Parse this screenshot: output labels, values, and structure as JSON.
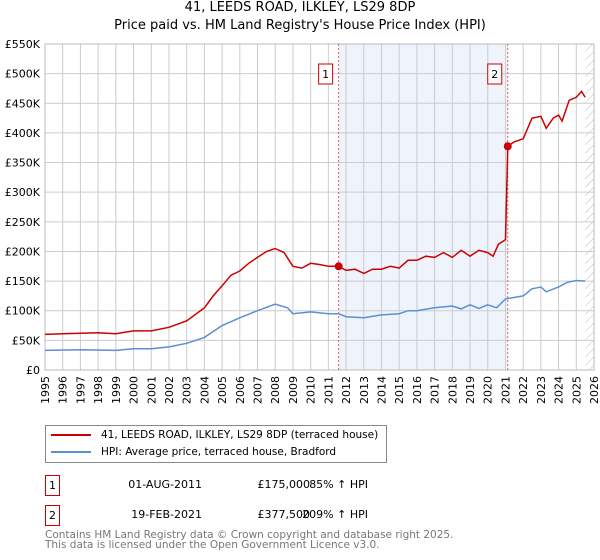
{
  "chart_data": {
    "type": "line",
    "title": "41, LEEDS ROAD, ILKLEY, LS29 8DP",
    "subtitle": "Price paid vs. HM Land Registry's House Price Index (HPI)",
    "xlim": [
      1995,
      2026
    ],
    "ylim": [
      0,
      550000
    ],
    "x_ticks": [
      "1995",
      "1996",
      "1997",
      "1998",
      "1999",
      "2000",
      "2001",
      "2002",
      "2003",
      "2004",
      "2005",
      "2006",
      "2007",
      "2008",
      "2009",
      "2010",
      "2011",
      "2012",
      "2013",
      "2014",
      "2015",
      "2016",
      "2017",
      "2018",
      "2019",
      "2020",
      "2021",
      "2022",
      "2023",
      "2024",
      "2025",
      "2026"
    ],
    "y_ticks": [
      "£0",
      "£50K",
      "£100K",
      "£150K",
      "£200K",
      "£250K",
      "£300K",
      "£350K",
      "£400K",
      "£450K",
      "£500K",
      "£550K"
    ],
    "grid": true,
    "series": [
      {
        "name": "41, LEEDS ROAD, ILKLEY, LS29 8DP (terraced house)",
        "color": "#cc0000",
        "points": [
          [
            1995,
            60
          ],
          [
            1996,
            61
          ],
          [
            1997,
            62
          ],
          [
            1998,
            63
          ],
          [
            1999,
            61
          ],
          [
            2000,
            66
          ],
          [
            2001,
            66
          ],
          [
            2002,
            72
          ],
          [
            2003,
            83
          ],
          [
            2004,
            105
          ],
          [
            2004.5,
            125
          ],
          [
            2005,
            142
          ],
          [
            2005.5,
            160
          ],
          [
            2006,
            167
          ],
          [
            2006.5,
            180
          ],
          [
            2007,
            190
          ],
          [
            2007.5,
            200
          ],
          [
            2008,
            205
          ],
          [
            2008.5,
            198
          ],
          [
            2009,
            175
          ],
          [
            2009.5,
            172
          ],
          [
            2010,
            180
          ],
          [
            2010.5,
            178
          ],
          [
            2011,
            175
          ],
          [
            2011.58,
            175
          ],
          [
            2012,
            168
          ],
          [
            2012.5,
            170
          ],
          [
            2013,
            163
          ],
          [
            2013.5,
            170
          ],
          [
            2014,
            170
          ],
          [
            2014.5,
            175
          ],
          [
            2015,
            172
          ],
          [
            2015.5,
            185
          ],
          [
            2016,
            185
          ],
          [
            2016.5,
            192
          ],
          [
            2017,
            190
          ],
          [
            2017.5,
            198
          ],
          [
            2018,
            190
          ],
          [
            2018.5,
            202
          ],
          [
            2019,
            192
          ],
          [
            2019.5,
            202
          ],
          [
            2020,
            198
          ],
          [
            2020.3,
            192
          ],
          [
            2020.6,
            212
          ],
          [
            2021.0,
            220
          ],
          [
            2021.13,
            377.5
          ],
          [
            2021.5,
            385
          ],
          [
            2022,
            390
          ],
          [
            2022.5,
            425
          ],
          [
            2023,
            428
          ],
          [
            2023.3,
            408
          ],
          [
            2023.7,
            425
          ],
          [
            2024,
            430
          ],
          [
            2024.2,
            420
          ],
          [
            2024.6,
            455
          ],
          [
            2025,
            460
          ],
          [
            2025.3,
            470
          ],
          [
            2025.5,
            460
          ]
        ]
      },
      {
        "name": "HPI: Average price, terraced house, Bradford",
        "color": "#5b8fd4",
        "points": [
          [
            1995,
            33
          ],
          [
            1997,
            34
          ],
          [
            1999,
            33
          ],
          [
            2000,
            36
          ],
          [
            2001,
            36
          ],
          [
            2002,
            39
          ],
          [
            2003,
            45
          ],
          [
            2004,
            55
          ],
          [
            2005,
            75
          ],
          [
            2006,
            88
          ],
          [
            2007,
            100
          ],
          [
            2008,
            111
          ],
          [
            2008.7,
            105
          ],
          [
            2009,
            95
          ],
          [
            2010,
            98
          ],
          [
            2011,
            95
          ],
          [
            2011.58,
            95
          ],
          [
            2012,
            90
          ],
          [
            2013,
            88
          ],
          [
            2014,
            93
          ],
          [
            2015,
            95
          ],
          [
            2015.5,
            100
          ],
          [
            2016,
            100
          ],
          [
            2017,
            105
          ],
          [
            2018,
            108
          ],
          [
            2018.5,
            103
          ],
          [
            2019,
            110
          ],
          [
            2019.5,
            104
          ],
          [
            2020,
            110
          ],
          [
            2020.5,
            105
          ],
          [
            2021,
            120
          ],
          [
            2022,
            125
          ],
          [
            2022.5,
            137
          ],
          [
            2023,
            140
          ],
          [
            2023.3,
            132
          ],
          [
            2024,
            140
          ],
          [
            2024.5,
            148
          ],
          [
            2025,
            151
          ],
          [
            2025.5,
            150
          ]
        ]
      }
    ],
    "value_units": "£ thousands",
    "annotations": [
      {
        "label": "1",
        "x": 2011.58,
        "y": 175
      },
      {
        "label": "2",
        "x": 2021.13,
        "y": 377.5
      }
    ],
    "shaded_range": [
      2011.58,
      2021.13
    ],
    "forecast_hatch_from": 2025.5,
    "legend_position": "below"
  },
  "legend": {
    "items": [
      {
        "label": "41, LEEDS ROAD, ILKLEY, LS29 8DP (terraced house)",
        "color": "#cc0000"
      },
      {
        "label": "HPI: Average price, terraced house, Bradford",
        "color": "#5b8fd4"
      }
    ]
  },
  "sales": [
    {
      "num": "1",
      "date": "01-AUG-2011",
      "price": "£175,000",
      "hpi": "85% ↑ HPI"
    },
    {
      "num": "2",
      "date": "19-FEB-2021",
      "price": "£377,500",
      "hpi": "209% ↑ HPI"
    }
  ],
  "footer": {
    "line1": "Contains HM Land Registry data © Crown copyright and database right 2025.",
    "line2": "This data is licensed under the Open Government Licence v3.0."
  }
}
